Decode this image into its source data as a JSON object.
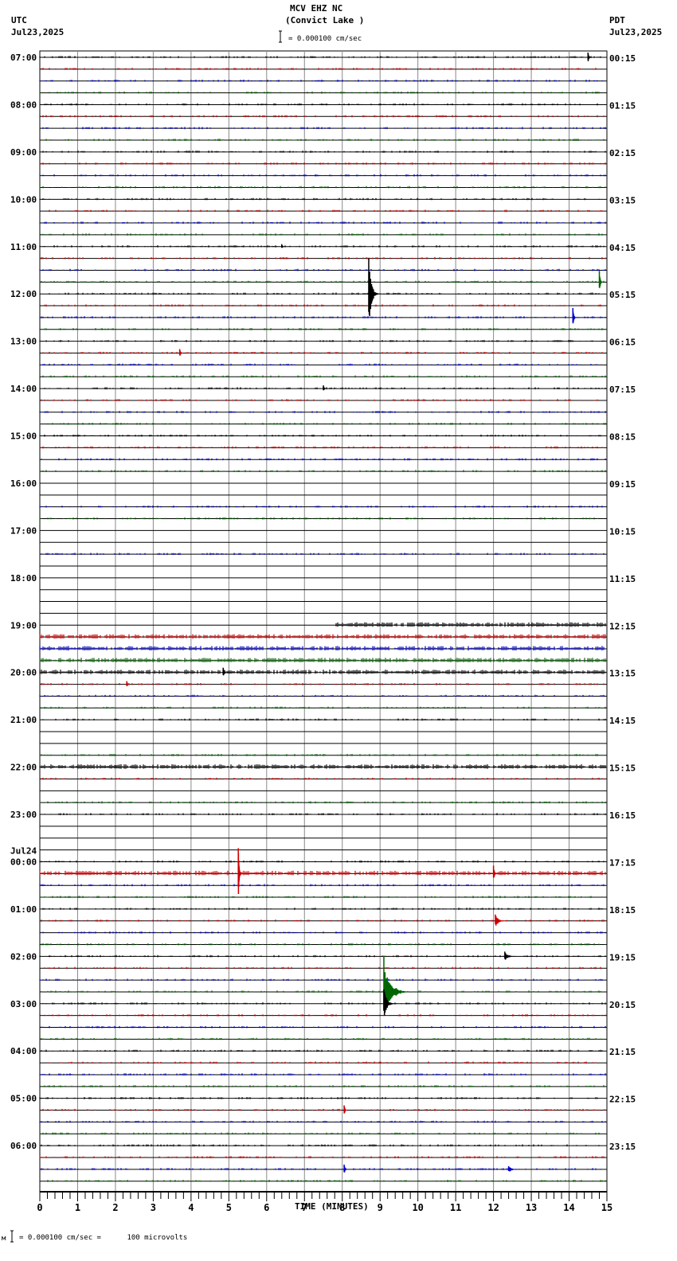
{
  "header": {
    "station": "MCV EHZ NC",
    "location": "(Convict Lake )",
    "left_tz": "UTC",
    "left_date": "Jul23,2025",
    "right_tz": "PDT",
    "right_date": "Jul23,2025",
    "scale_text": "= 0.000100 cm/sec"
  },
  "footer": {
    "scale_text": "= 0.000100 cm/sec =      100 microvolts",
    "prefix": "м"
  },
  "colors": {
    "trace": [
      "#000000",
      "#cc0000",
      "#0000cc",
      "#006600"
    ],
    "grid": "#888888",
    "line": "#000000"
  },
  "chart_data": {
    "type": "line",
    "title": "MCV EHZ NC (Convict Lake )",
    "xlabel": "TIME (MINUTES)",
    "ylabel": "",
    "xlim": [
      0,
      15
    ],
    "x_ticks": [
      "0",
      "1",
      "2",
      "3",
      "4",
      "5",
      "6",
      "7",
      "8",
      "9",
      "10",
      "11",
      "12",
      "13",
      "14",
      "15"
    ],
    "minor_ticks_per_minute": 5,
    "traces_per_hour": 4,
    "left_labels": [
      "07:00",
      "08:00",
      "09:00",
      "10:00",
      "11:00",
      "12:00",
      "13:00",
      "14:00",
      "15:00",
      "16:00",
      "17:00",
      "18:00",
      "19:00",
      "20:00",
      "21:00",
      "22:00",
      "23:00",
      "00:00",
      "01:00",
      "02:00",
      "03:00",
      "04:00",
      "05:00",
      "06:00"
    ],
    "left_date_change": {
      "index": 17,
      "label": "Jul24"
    },
    "right_labels": [
      "00:15",
      "01:15",
      "02:15",
      "03:15",
      "04:15",
      "05:15",
      "06:15",
      "07:15",
      "08:15",
      "09:15",
      "10:15",
      "11:15",
      "12:15",
      "13:15",
      "14:15",
      "15:15",
      "16:15",
      "17:15",
      "18:15",
      "19:15",
      "20:15",
      "21:15",
      "22:15",
      "23:15"
    ],
    "scale": "0.000100 cm/sec = 100 microvolts",
    "events": [
      {
        "row": 0,
        "minute": 14.5,
        "amp": 6
      },
      {
        "row": 16,
        "minute": 6.4,
        "amp": 3
      },
      {
        "row": 19,
        "minute": 14.8,
        "amp": 14
      },
      {
        "row": 20,
        "minute": 8.7,
        "amp": 45,
        "dur": 0.25
      },
      {
        "row": 22,
        "minute": 14.1,
        "amp": 12
      },
      {
        "row": 25,
        "minute": 3.7,
        "amp": 5
      },
      {
        "row": 28,
        "minute": 7.5,
        "amp": 4
      },
      {
        "row": 52,
        "minute": 4.85,
        "amp": 6
      },
      {
        "row": 53,
        "minute": 2.3,
        "amp": 4
      },
      {
        "row": 69,
        "minute": 5.25,
        "amp": 32
      },
      {
        "row": 69,
        "minute": 12.0,
        "amp": 10
      },
      {
        "row": 73,
        "minute": 12.05,
        "amp": 8,
        "dur": 0.3
      },
      {
        "row": 76,
        "minute": 12.3,
        "amp": 6,
        "dur": 0.3
      },
      {
        "row": 79,
        "minute": 9.1,
        "amp": 45,
        "dur": 0.6
      },
      {
        "row": 80,
        "minute": 9.1,
        "amp": 18,
        "dur": 0.3
      },
      {
        "row": 89,
        "minute": 8.05,
        "amp": 6
      },
      {
        "row": 94,
        "minute": 8.05,
        "amp": 6
      },
      {
        "row": 94,
        "minute": 12.4,
        "amp": 4,
        "dur": 0.3
      }
    ],
    "gaps": [
      {
        "row": 37,
        "from": 0,
        "to": 15
      },
      {
        "row": 36,
        "from": 0,
        "to": 15
      },
      {
        "row": 40,
        "from": 0,
        "to": 15
      },
      {
        "row": 41,
        "from": 0,
        "to": 15
      },
      {
        "row": 43,
        "from": 0,
        "to": 15
      },
      {
        "row": 44,
        "from": 0,
        "to": 15
      },
      {
        "row": 45,
        "from": 0,
        "to": 15
      },
      {
        "row": 46,
        "from": 0,
        "to": 15
      },
      {
        "row": 47,
        "from": 0,
        "to": 15
      },
      {
        "row": 48,
        "from": 0,
        "to": 7.8
      },
      {
        "row": 57,
        "from": 0,
        "to": 15
      },
      {
        "row": 58,
        "from": 0,
        "to": 15
      },
      {
        "row": 62,
        "from": 0,
        "to": 15
      },
      {
        "row": 66,
        "from": 0,
        "to": 15
      },
      {
        "row": 65,
        "from": 0,
        "to": 15
      },
      {
        "row": 67,
        "from": 0,
        "to": 15
      }
    ],
    "noisy_rows": [
      48,
      49,
      50,
      51,
      52,
      69,
      60
    ]
  }
}
